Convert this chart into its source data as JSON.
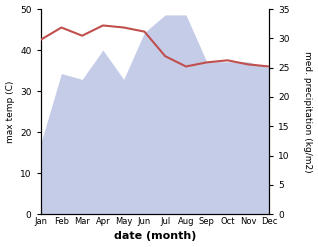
{
  "months": [
    "Jan",
    "Feb",
    "Mar",
    "Apr",
    "May",
    "Jun",
    "Jul",
    "Aug",
    "Sep",
    "Oct",
    "Nov",
    "Dec"
  ],
  "x": [
    0,
    1,
    2,
    3,
    4,
    5,
    6,
    7,
    8,
    9,
    10,
    11
  ],
  "temperature": [
    42.5,
    45.5,
    43.5,
    46.0,
    45.5,
    44.5,
    38.5,
    36.0,
    37.0,
    37.5,
    36.5,
    36.0
  ],
  "precipitation": [
    12,
    24,
    23,
    28,
    23,
    31,
    34,
    34,
    26,
    26,
    26,
    25
  ],
  "temp_color": "#c0504d",
  "precip_fill_color": "#c5cce8",
  "temp_ylim": [
    0,
    50
  ],
  "precip_ylim": [
    0,
    35
  ],
  "temp_yticks": [
    0,
    10,
    20,
    30,
    40,
    50
  ],
  "precip_yticks": [
    0,
    5,
    10,
    15,
    20,
    25,
    30,
    35
  ],
  "xlabel": "date (month)",
  "ylabel_left": "max temp (C)",
  "ylabel_right": "med. precipitation (kg/m2)"
}
